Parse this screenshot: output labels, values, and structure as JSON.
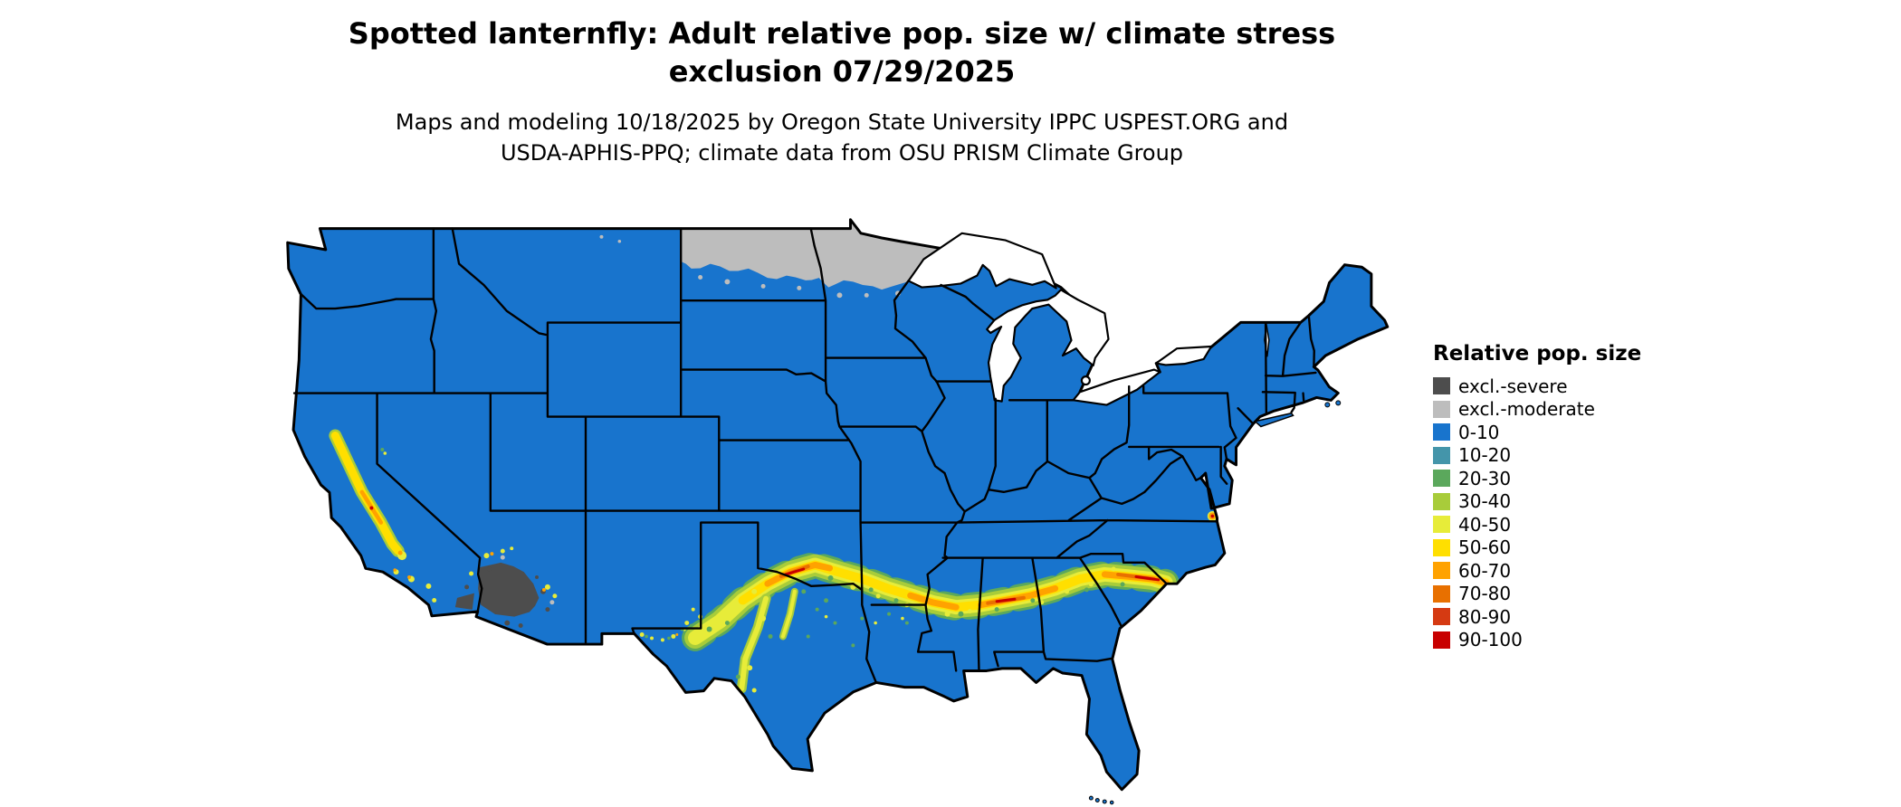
{
  "page": {
    "background": "#ffffff"
  },
  "title": {
    "line1": "Spotted lanternfly: Adult relative pop. size w/ climate stress",
    "line2": "exclusion 07/29/2025"
  },
  "subtitle": {
    "line1": "Maps and modeling 10/18/2025 by Oregon State University IPPC USPEST.ORG and",
    "line2": "USDA-APHIS-PPQ; climate data from OSU PRISM Climate Group"
  },
  "legend": {
    "title": "Relative pop. size",
    "items": [
      {
        "label": "excl.-severe",
        "color": "#4d4d4d"
      },
      {
        "label": "excl.-moderate",
        "color": "#bdbdbd"
      },
      {
        "label": "0-10",
        "color": "#1874cd"
      },
      {
        "label": "10-20",
        "color": "#4495aa"
      },
      {
        "label": "20-30",
        "color": "#5ba85c"
      },
      {
        "label": "30-40",
        "color": "#a8cc3a"
      },
      {
        "label": "40-50",
        "color": "#e7ec39"
      },
      {
        "label": "50-60",
        "color": "#ffdf00"
      },
      {
        "label": "60-70",
        "color": "#ffa200"
      },
      {
        "label": "70-80",
        "color": "#e87000"
      },
      {
        "label": "80-90",
        "color": "#d53a12"
      },
      {
        "label": "90-100",
        "color": "#c80000"
      }
    ]
  },
  "map": {
    "area": "Contiguous United States",
    "base_class": "0-10",
    "base_color": "#1874cd",
    "features": [
      {
        "name": "northern-exclusion",
        "class": "excl.-moderate",
        "color": "#bdbdbd",
        "location": "northern North Dakota and northern Minnesota along the Canadian border"
      },
      {
        "name": "southwest-exclusion",
        "class": "excl.-severe",
        "color": "#4d4d4d",
        "location": "southwestern Arizona and southeastern California deserts"
      },
      {
        "name": "southern-band",
        "class": "30-100",
        "location": "band from west Texas through Oklahoma, Arkansas, Louisiana, Mississippi, Alabama, Georgia to the Carolina coast"
      },
      {
        "name": "california-central-valley",
        "class": "40-70",
        "location": "California Central Valley"
      },
      {
        "name": "virginia-coast-hotspot",
        "class": "60-80",
        "location": "small coastal spot near the Virginia / North Carolina border"
      }
    ]
  }
}
